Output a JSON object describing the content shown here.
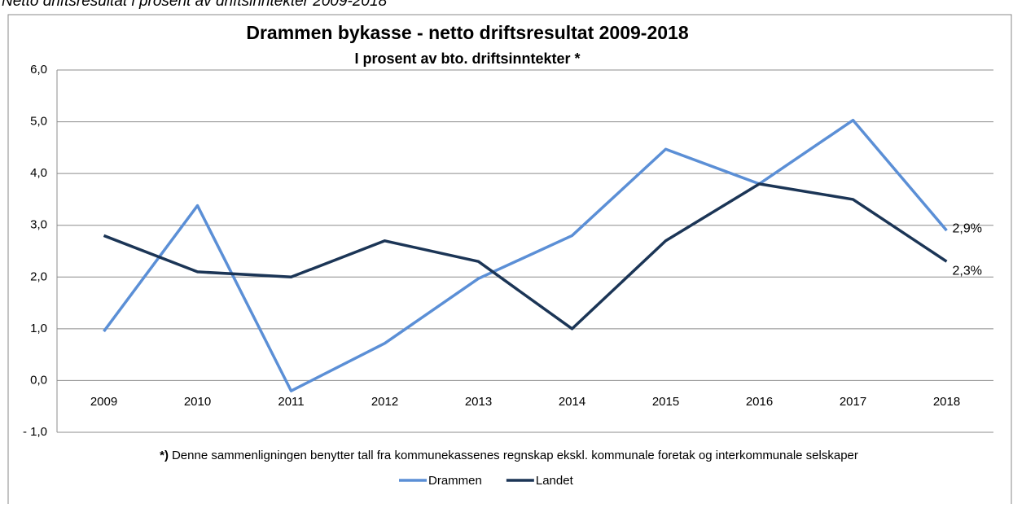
{
  "caption": "Netto driftsresultat i prosent av driftsinntekter 2009-2018",
  "chart_data": {
    "type": "line",
    "title": "Drammen bykasse - netto driftsresultat  2009-2018",
    "subtitle": "I prosent av bto. driftsinntekter  *",
    "categories": [
      "2009",
      "2010",
      "2011",
      "2012",
      "2013",
      "2014",
      "2015",
      "2016",
      "2017",
      "2018"
    ],
    "series": [
      {
        "name": "Drammen",
        "color": "#5b8fd6",
        "values": [
          0.95,
          3.38,
          -0.2,
          0.72,
          1.97,
          2.8,
          4.47,
          3.8,
          5.03,
          2.9
        ],
        "value_labels": [
          null,
          null,
          null,
          null,
          null,
          null,
          null,
          null,
          null,
          "2,9%"
        ]
      },
      {
        "name": "Landet",
        "color": "#1b3556",
        "values": [
          2.8,
          2.1,
          2.0,
          2.7,
          2.3,
          1.0,
          2.7,
          3.8,
          3.5,
          2.3
        ],
        "value_labels": [
          null,
          null,
          null,
          null,
          null,
          null,
          null,
          null,
          null,
          "2,3%"
        ]
      }
    ],
    "ylim": [
      -1,
      6
    ],
    "yticks": [
      {
        "value": -1,
        "label": "- 1,0"
      },
      {
        "value": 0,
        "label": "0,0"
      },
      {
        "value": 1,
        "label": "1,0"
      },
      {
        "value": 2,
        "label": "2,0"
      },
      {
        "value": 3,
        "label": "3,0"
      },
      {
        "value": 4,
        "label": "4,0"
      },
      {
        "value": 5,
        "label": "5,0"
      },
      {
        "value": 6,
        "label": "6,0"
      }
    ],
    "grid": true,
    "footnote_marker": "*)",
    "footnote": "Denne sammenligningen benytter tall fra kommunekassenes regnskap ekskl. kommunale foretak og interkommunale selskaper",
    "legend": "bottom"
  }
}
